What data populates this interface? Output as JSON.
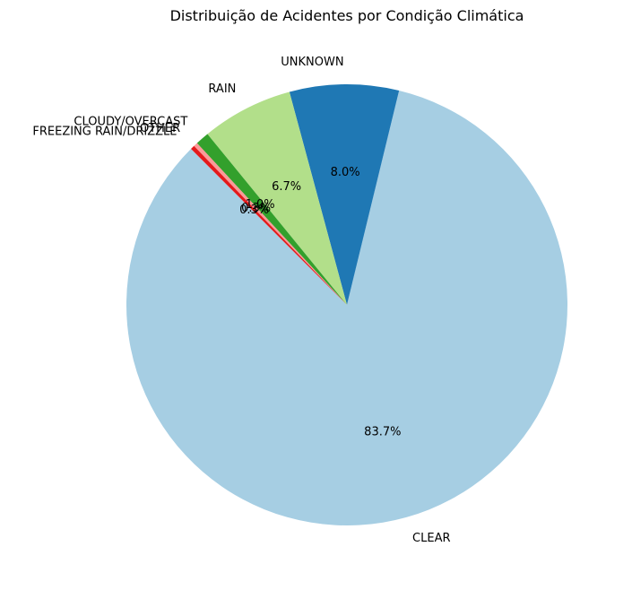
{
  "chart_data": {
    "type": "pie",
    "title": "Distribuição de Acidentes por Condição Climática",
    "start_angle_deg": 135,
    "direction": "counterclockwise",
    "slices": [
      {
        "label": "CLEAR",
        "value": 83.7,
        "pct_label": "83.7%",
        "color": "#a6cee3"
      },
      {
        "label": "UNKNOWN",
        "value": 8.0,
        "pct_label": "8.0%",
        "color": "#1f78b4"
      },
      {
        "label": "RAIN",
        "value": 6.7,
        "pct_label": "6.7%",
        "color": "#b2df8a"
      },
      {
        "label": "CLOUDY/OVERCAST",
        "value": 1.0,
        "pct_label": "1.0%",
        "color": "#33a02c"
      },
      {
        "label": "OTHER",
        "value": 0.3,
        "pct_label": "0.3%",
        "color": "#fb9a99"
      },
      {
        "label": "FREEZING RAIN/DRIZZLE",
        "value": 0.3,
        "pct_label": "0.3%",
        "color": "#e31a1c"
      }
    ]
  }
}
